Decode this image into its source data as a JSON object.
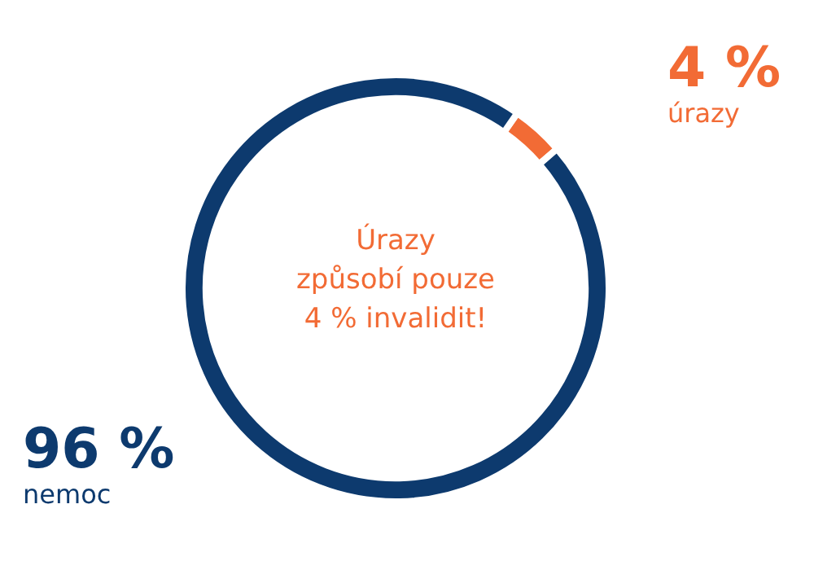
{
  "chart_data": {
    "type": "donut",
    "categories": [
      "úrazy",
      "nemoc"
    ],
    "values": [
      4,
      96
    ],
    "colors": [
      "#f26b35",
      "#0d3a6e"
    ],
    "value_labels": [
      "4 %",
      "96 %"
    ],
    "legend": false,
    "annotations": [
      "Úrazy\nzpůsobí pouze\n4 % invalidit!"
    ]
  }
}
